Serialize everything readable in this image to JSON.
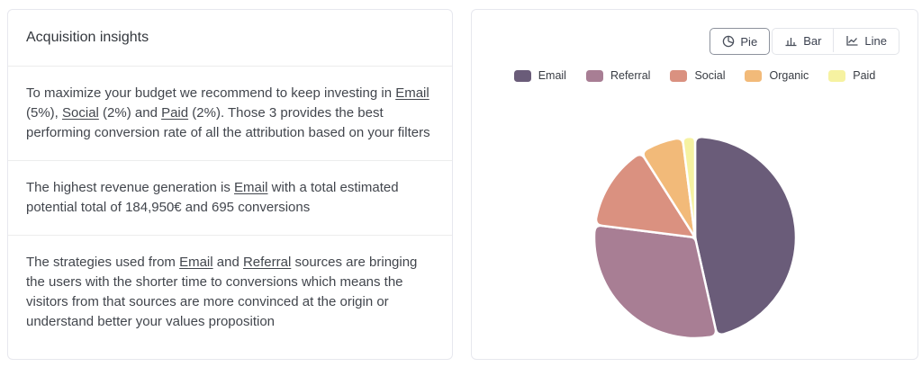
{
  "left_panel": {
    "title": "Acquisition insights",
    "insights": [
      {
        "segments": [
          {
            "text": "To maximize your budget we recommend to keep investing in "
          },
          {
            "text": "Email",
            "link": true
          },
          {
            "text": " (5%), "
          },
          {
            "text": "Social",
            "link": true
          },
          {
            "text": " (2%) and "
          },
          {
            "text": "Paid",
            "link": true
          },
          {
            "text": " (2%). Those 3 provides the best performing conversion rate of all the attribution based on your filters"
          }
        ]
      },
      {
        "segments": [
          {
            "text": "The highest revenue generation is "
          },
          {
            "text": "Email",
            "link": true
          },
          {
            "text": " with a total estimated potential total of 184,950€ and 695 conversions"
          }
        ]
      },
      {
        "segments": [
          {
            "text": "The strategies used from "
          },
          {
            "text": "Email",
            "link": true
          },
          {
            "text": " and "
          },
          {
            "text": "Referral",
            "link": true
          },
          {
            "text": " sources are bringing the users with the shorter time to conversions which means the visitors from that sources are more convinced at the origin or understand better your values proposition"
          }
        ]
      }
    ]
  },
  "right_panel": {
    "view_buttons": [
      {
        "label": "Pie",
        "icon": "pie-chart-icon",
        "active": true
      },
      {
        "label": "Bar",
        "icon": "bar-chart-icon",
        "active": false
      },
      {
        "label": "Line",
        "icon": "line-chart-icon",
        "active": false
      }
    ],
    "chart_data": {
      "type": "pie",
      "categories": [
        "Email",
        "Referral",
        "Social",
        "Organic",
        "Paid"
      ],
      "values": [
        46.5,
        30.5,
        14,
        7,
        2
      ],
      "colors": [
        "#6a5c79",
        "#a87e94",
        "#da9180",
        "#f2ba79",
        "#f6f2a1"
      ],
      "title": "",
      "legend_position": "top",
      "start_angle_deg": 0,
      "slice_gap_color": "#ffffff"
    }
  }
}
